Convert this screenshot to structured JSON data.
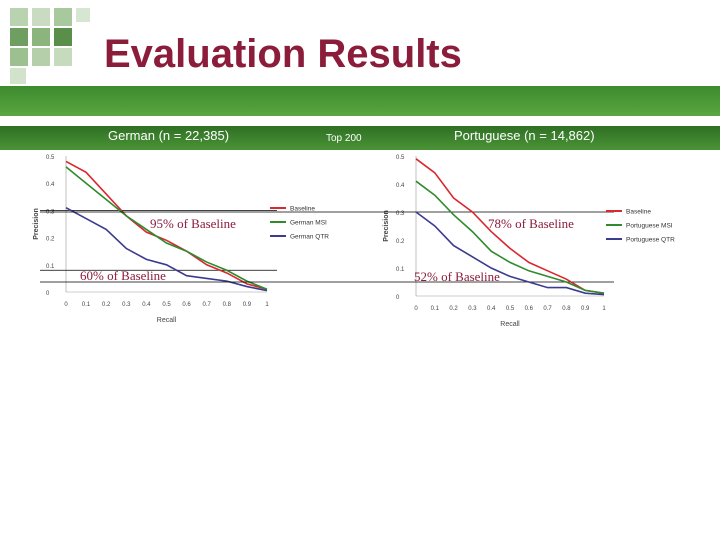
{
  "slide": {
    "title": "Evaluation Results",
    "header": {
      "left": "German (n = 22,385)",
      "center": "Top 200",
      "right": "Portuguese (n = 14,862)"
    }
  },
  "colors": {
    "title": "#8b1c3a",
    "band": "#4a9436",
    "baseline": "#d9282f",
    "msi": "#2e8b2e",
    "qtr": "#3b3b8f"
  },
  "chart_data": [
    {
      "type": "line",
      "title": "German (n = 22,385)",
      "xlabel": "Recall",
      "ylabel": "Precision",
      "xlim": [
        0,
        1
      ],
      "ylim": [
        0,
        0.5
      ],
      "x_ticks": [
        "0",
        "0.1",
        "0.2",
        "0.3",
        "0.4",
        "0.5",
        "0.6",
        "0.7",
        "0.8",
        "0.9",
        "1"
      ],
      "y_ticks": [
        "0",
        "0.1",
        "0.2",
        "0.3",
        "0.4",
        "0.5"
      ],
      "x": [
        0,
        0.1,
        0.2,
        0.3,
        0.4,
        0.5,
        0.6,
        0.7,
        0.8,
        0.9,
        1
      ],
      "series": [
        {
          "name": "Baseline",
          "color": "#d9282f",
          "values": [
            0.48,
            0.44,
            0.36,
            0.28,
            0.22,
            0.19,
            0.15,
            0.1,
            0.07,
            0.03,
            0.01
          ]
        },
        {
          "name": "German MSI",
          "color": "#2e8b2e",
          "values": [
            0.46,
            0.4,
            0.34,
            0.28,
            0.23,
            0.18,
            0.15,
            0.11,
            0.08,
            0.04,
            0.01
          ]
        },
        {
          "name": "German QTR",
          "color": "#3b3b8f",
          "values": [
            0.31,
            0.27,
            0.23,
            0.16,
            0.12,
            0.1,
            0.06,
            0.05,
            0.04,
            0.02,
            0.005
          ]
        }
      ],
      "reference_y": [
        0.3,
        0.08
      ],
      "annotations": [
        "95% of Baseline",
        "60% of Baseline"
      ],
      "legend": "right"
    },
    {
      "type": "line",
      "title": "Portuguese (n = 14,862)",
      "xlabel": "Recall",
      "ylabel": "Precision",
      "xlim": [
        0,
        1
      ],
      "ylim": [
        0,
        0.5
      ],
      "x_ticks": [
        "0",
        "0.1",
        "0.2",
        "0.3",
        "0.4",
        "0.5",
        "0.6",
        "0.7",
        "0.8",
        "0.9",
        "1"
      ],
      "y_ticks": [
        "0",
        "0.1",
        "0.2",
        "0.3",
        "0.4",
        "0.5"
      ],
      "x": [
        0,
        0.1,
        0.2,
        0.3,
        0.4,
        0.5,
        0.6,
        0.7,
        0.8,
        0.9,
        1
      ],
      "series": [
        {
          "name": "Baseline",
          "color": "#d9282f",
          "values": [
            0.49,
            0.44,
            0.35,
            0.3,
            0.23,
            0.17,
            0.12,
            0.09,
            0.06,
            0.02,
            0.01
          ]
        },
        {
          "name": "Portuguese MSI",
          "color": "#2e8b2e",
          "values": [
            0.41,
            0.36,
            0.29,
            0.23,
            0.16,
            0.12,
            0.09,
            0.07,
            0.05,
            0.02,
            0.01
          ]
        },
        {
          "name": "Portuguese QTR",
          "color": "#3b3b8f",
          "values": [
            0.3,
            0.25,
            0.18,
            0.14,
            0.1,
            0.07,
            0.05,
            0.03,
            0.03,
            0.01,
            0.005
          ]
        }
      ],
      "reference_y": [
        0.3,
        0.05
      ],
      "annotations": [
        "78% of Baseline",
        "52% of Baseline"
      ],
      "legend": "right"
    }
  ]
}
